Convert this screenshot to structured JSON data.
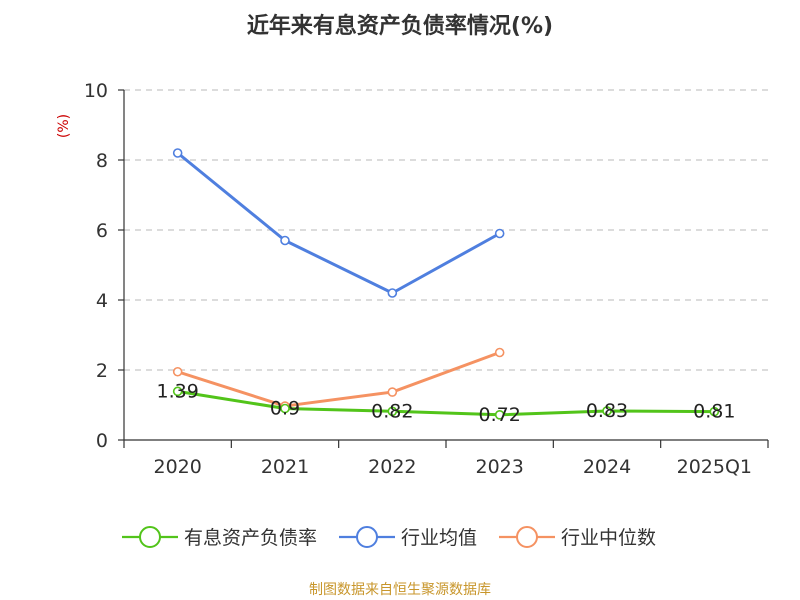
{
  "chart_data": {
    "type": "line",
    "title": "近年来有息资产负债率情况(%)",
    "ylabel": "(%)",
    "categories": [
      "2020",
      "2021",
      "2022",
      "2023",
      "2024",
      "2025Q1"
    ],
    "ylim": [
      0,
      10
    ],
    "yticks": [
      0,
      2,
      4,
      6,
      8,
      10
    ],
    "grid": true,
    "legend_position": "bottom",
    "series": [
      {
        "name": "有息资产负债率",
        "color": "#52c41a",
        "values": [
          1.39,
          0.9,
          0.82,
          0.72,
          0.83,
          0.81
        ],
        "labels": [
          "1.39",
          "0.9",
          "0.82",
          "0.72",
          "0.83",
          "0.81"
        ]
      },
      {
        "name": "行业均值",
        "color": "#4f7fdf",
        "values": [
          8.2,
          5.7,
          4.2,
          5.9,
          null,
          null
        ]
      },
      {
        "name": "行业中位数",
        "color": "#f59262",
        "values": [
          1.95,
          0.97,
          1.37,
          2.5,
          null,
          null
        ]
      }
    ]
  },
  "source": "制图数据来自恒生聚源数据库"
}
